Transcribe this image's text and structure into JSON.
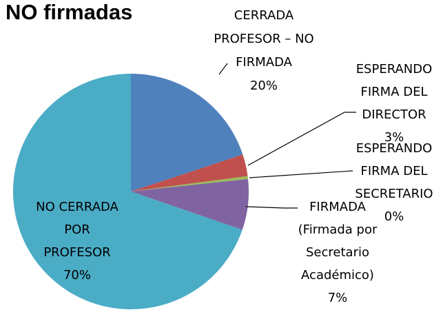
{
  "chart_data": {
    "type": "pie",
    "title": "NO firmadas",
    "categories": [
      "CERRADA\nPROFESOR – NO\nFIRMADA",
      "ESPERANDO\nFIRMA DEL\nDIRECTOR",
      "ESPERANDO\nFIRMA DEL\nSECRETARIO",
      "FIRMADA\n(Firmada por\nSecretario\nAcadémico)",
      "NO CERRADA\nPOR\nPROFESOR"
    ],
    "values": [
      20,
      3,
      0.4,
      7,
      70
    ],
    "value_labels": [
      "20%",
      "3%",
      "0%",
      "7%",
      "70%"
    ],
    "colors": [
      "#4f81bd",
      "#c0504d",
      "#9bbb59",
      "#8064a2",
      "#4bacc6"
    ],
    "start_angle": 0,
    "direction": "clockwise"
  }
}
